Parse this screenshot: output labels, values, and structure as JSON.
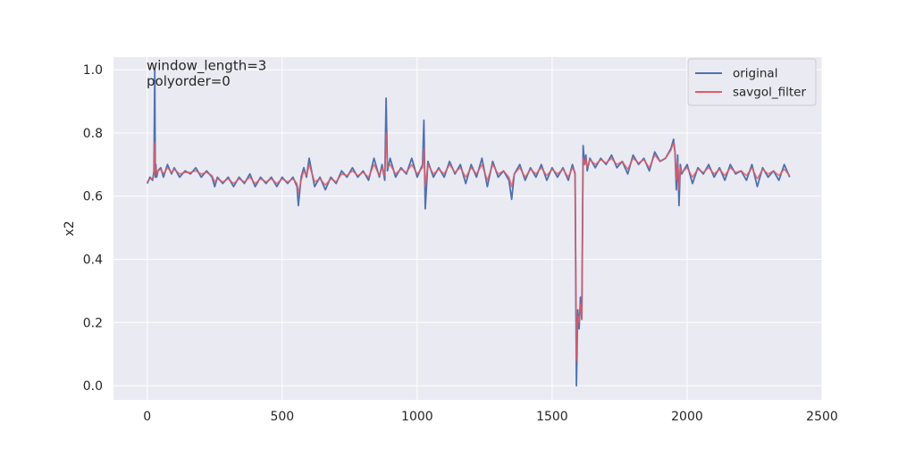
{
  "chart_data": {
    "type": "line",
    "title": "",
    "xlabel": "",
    "ylabel": "x2",
    "xlim": [
      -125,
      2500
    ],
    "ylim": [
      -0.045,
      1.04
    ],
    "xticks": [
      0,
      500,
      1000,
      1500,
      2000,
      2500
    ],
    "xtick_labels": [
      "0",
      "500",
      "1000",
      "1500",
      "2000",
      "2500"
    ],
    "yticks": [
      0.0,
      0.2,
      0.4,
      0.6,
      0.8,
      1.0
    ],
    "ytick_labels": [
      "0.0",
      "0.2",
      "0.4",
      "0.6",
      "0.8",
      "1.0"
    ],
    "grid": true,
    "legend_position": "top-right",
    "annotations": [
      "window_length=3",
      "polyorder=0"
    ],
    "series": [
      {
        "name": "original",
        "color": "#4c72b0",
        "x": [
          0,
          10,
          20,
          25,
          28,
          30,
          32,
          35,
          40,
          50,
          60,
          75,
          90,
          100,
          120,
          140,
          160,
          180,
          200,
          220,
          240,
          250,
          260,
          280,
          300,
          320,
          340,
          360,
          380,
          400,
          420,
          440,
          460,
          480,
          500,
          520,
          540,
          555,
          560,
          570,
          580,
          590,
          600,
          620,
          640,
          660,
          680,
          700,
          720,
          740,
          760,
          780,
          800,
          820,
          840,
          860,
          870,
          880,
          885,
          890,
          900,
          920,
          940,
          960,
          980,
          1000,
          1020,
          1025,
          1030,
          1040,
          1060,
          1080,
          1100,
          1120,
          1140,
          1160,
          1180,
          1200,
          1220,
          1240,
          1260,
          1280,
          1300,
          1320,
          1340,
          1350,
          1360,
          1380,
          1400,
          1420,
          1440,
          1460,
          1480,
          1500,
          1520,
          1540,
          1560,
          1575,
          1585,
          1590,
          1595,
          1600,
          1605,
          1610,
          1615,
          1620,
          1625,
          1630,
          1640,
          1660,
          1680,
          1700,
          1720,
          1740,
          1760,
          1780,
          1800,
          1820,
          1840,
          1860,
          1880,
          1900,
          1920,
          1940,
          1950,
          1955,
          1960,
          1965,
          1970,
          1975,
          1980,
          2000,
          2020,
          2040,
          2060,
          2080,
          2100,
          2120,
          2140,
          2160,
          2180,
          2200,
          2220,
          2240,
          2260,
          2280,
          2300,
          2320,
          2340,
          2360,
          2380
        ],
        "y": [
          0.64,
          0.66,
          0.65,
          0.68,
          1.0,
          0.66,
          0.7,
          0.66,
          0.68,
          0.69,
          0.66,
          0.7,
          0.67,
          0.69,
          0.66,
          0.68,
          0.67,
          0.69,
          0.66,
          0.68,
          0.66,
          0.63,
          0.66,
          0.64,
          0.66,
          0.63,
          0.66,
          0.64,
          0.67,
          0.63,
          0.66,
          0.64,
          0.66,
          0.63,
          0.66,
          0.64,
          0.66,
          0.63,
          0.57,
          0.66,
          0.69,
          0.66,
          0.72,
          0.63,
          0.66,
          0.62,
          0.66,
          0.64,
          0.68,
          0.66,
          0.69,
          0.66,
          0.68,
          0.65,
          0.72,
          0.66,
          0.7,
          0.65,
          0.91,
          0.68,
          0.72,
          0.66,
          0.69,
          0.67,
          0.72,
          0.66,
          0.7,
          0.84,
          0.56,
          0.71,
          0.66,
          0.69,
          0.66,
          0.71,
          0.67,
          0.7,
          0.64,
          0.7,
          0.66,
          0.72,
          0.63,
          0.71,
          0.66,
          0.68,
          0.65,
          0.59,
          0.67,
          0.7,
          0.65,
          0.69,
          0.66,
          0.7,
          0.65,
          0.69,
          0.66,
          0.69,
          0.65,
          0.7,
          0.67,
          0.0,
          0.24,
          0.18,
          0.28,
          0.21,
          0.76,
          0.7,
          0.73,
          0.68,
          0.72,
          0.69,
          0.72,
          0.7,
          0.73,
          0.69,
          0.71,
          0.67,
          0.73,
          0.7,
          0.72,
          0.68,
          0.74,
          0.71,
          0.72,
          0.75,
          0.78,
          0.74,
          0.62,
          0.73,
          0.57,
          0.7,
          0.67,
          0.7,
          0.64,
          0.69,
          0.67,
          0.7,
          0.66,
          0.69,
          0.65,
          0.7,
          0.67,
          0.68,
          0.65,
          0.7,
          0.63,
          0.69,
          0.66,
          0.68,
          0.65,
          0.7,
          0.66
        ]
      },
      {
        "name": "savgol_filter",
        "color": "#e8585f",
        "x": [
          0,
          10,
          20,
          25,
          28,
          30,
          32,
          35,
          40,
          50,
          60,
          75,
          90,
          100,
          120,
          140,
          160,
          180,
          200,
          220,
          240,
          250,
          260,
          280,
          300,
          320,
          340,
          360,
          380,
          400,
          420,
          440,
          460,
          480,
          500,
          520,
          540,
          555,
          560,
          570,
          580,
          590,
          600,
          620,
          640,
          660,
          680,
          700,
          720,
          740,
          760,
          780,
          800,
          820,
          840,
          860,
          870,
          880,
          885,
          890,
          900,
          920,
          940,
          960,
          980,
          1000,
          1020,
          1025,
          1030,
          1040,
          1060,
          1080,
          1100,
          1120,
          1140,
          1160,
          1180,
          1200,
          1220,
          1240,
          1260,
          1280,
          1300,
          1320,
          1340,
          1350,
          1360,
          1380,
          1400,
          1420,
          1440,
          1460,
          1480,
          1500,
          1520,
          1540,
          1560,
          1575,
          1585,
          1590,
          1595,
          1600,
          1605,
          1610,
          1615,
          1620,
          1625,
          1630,
          1640,
          1660,
          1680,
          1700,
          1720,
          1740,
          1760,
          1780,
          1800,
          1820,
          1840,
          1860,
          1880,
          1900,
          1920,
          1940,
          1950,
          1955,
          1960,
          1965,
          1970,
          1975,
          1980,
          2000,
          2020,
          2040,
          2060,
          2080,
          2100,
          2120,
          2140,
          2160,
          2180,
          2200,
          2220,
          2240,
          2260,
          2280,
          2300,
          2320,
          2340,
          2360,
          2380
        ],
        "y": [
          0.645,
          0.655,
          0.655,
          0.67,
          0.77,
          0.68,
          0.69,
          0.67,
          0.68,
          0.685,
          0.67,
          0.69,
          0.675,
          0.685,
          0.67,
          0.675,
          0.675,
          0.68,
          0.67,
          0.675,
          0.665,
          0.645,
          0.655,
          0.645,
          0.655,
          0.64,
          0.655,
          0.645,
          0.66,
          0.64,
          0.655,
          0.645,
          0.655,
          0.64,
          0.655,
          0.645,
          0.655,
          0.64,
          0.61,
          0.65,
          0.68,
          0.665,
          0.7,
          0.645,
          0.655,
          0.635,
          0.655,
          0.645,
          0.67,
          0.665,
          0.68,
          0.665,
          0.675,
          0.66,
          0.7,
          0.665,
          0.69,
          0.665,
          0.8,
          0.69,
          0.7,
          0.67,
          0.685,
          0.675,
          0.7,
          0.67,
          0.69,
          0.75,
          0.63,
          0.7,
          0.67,
          0.685,
          0.67,
          0.7,
          0.675,
          0.69,
          0.66,
          0.69,
          0.67,
          0.7,
          0.65,
          0.7,
          0.67,
          0.68,
          0.66,
          0.63,
          0.67,
          0.69,
          0.66,
          0.685,
          0.67,
          0.69,
          0.665,
          0.685,
          0.67,
          0.685,
          0.66,
          0.69,
          0.675,
          0.08,
          0.22,
          0.2,
          0.26,
          0.21,
          0.72,
          0.7,
          0.72,
          0.69,
          0.715,
          0.7,
          0.715,
          0.705,
          0.72,
          0.7,
          0.71,
          0.685,
          0.72,
          0.705,
          0.715,
          0.69,
          0.73,
          0.71,
          0.72,
          0.745,
          0.77,
          0.74,
          0.65,
          0.71,
          0.62,
          0.69,
          0.675,
          0.69,
          0.66,
          0.685,
          0.675,
          0.69,
          0.67,
          0.685,
          0.665,
          0.69,
          0.675,
          0.68,
          0.665,
          0.69,
          0.655,
          0.685,
          0.67,
          0.68,
          0.665,
          0.685,
          0.665
        ]
      }
    ]
  }
}
